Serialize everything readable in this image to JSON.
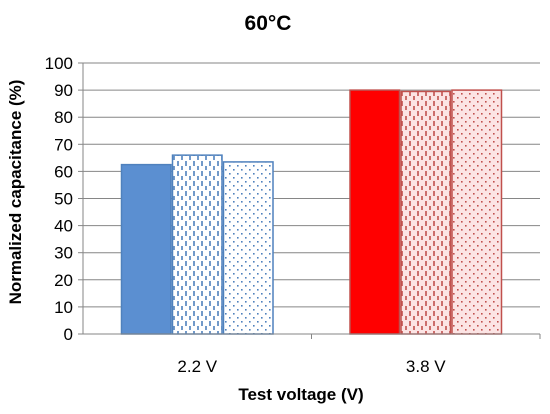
{
  "chart_data": {
    "type": "bar",
    "title": "60°C",
    "xlabel": "Test voltage (V)",
    "ylabel": "Normalized capacitance (%)",
    "categories": [
      "2.2 V",
      "3.8 V"
    ],
    "ylim": [
      0,
      100
    ],
    "yticks": [
      0,
      10,
      20,
      30,
      40,
      50,
      60,
      70,
      80,
      90,
      100
    ],
    "grid": "horizontal",
    "legend": "none",
    "groups": [
      {
        "category": "2.2 V",
        "bars": [
          {
            "value": 62.5,
            "pattern": "solid"
          },
          {
            "value": 66,
            "pattern": "dashes"
          },
          {
            "value": 63.5,
            "pattern": "dots"
          }
        ]
      },
      {
        "category": "3.8 V",
        "bars": [
          {
            "value": 90,
            "pattern": "solid"
          },
          {
            "value": 89.5,
            "pattern": "dashes"
          },
          {
            "value": 90,
            "pattern": "dots"
          }
        ]
      }
    ],
    "colors": {
      "2.2 V": {
        "stroke": "#4f81bd",
        "fill": "#5b8fd1",
        "light_fill": "#ffffff"
      },
      "3.8 V": {
        "stroke": "#c0504d",
        "fill": "#ff0000",
        "light_fill": "#fce4e4"
      },
      "grid": "#868686",
      "axis": "#868686"
    }
  }
}
